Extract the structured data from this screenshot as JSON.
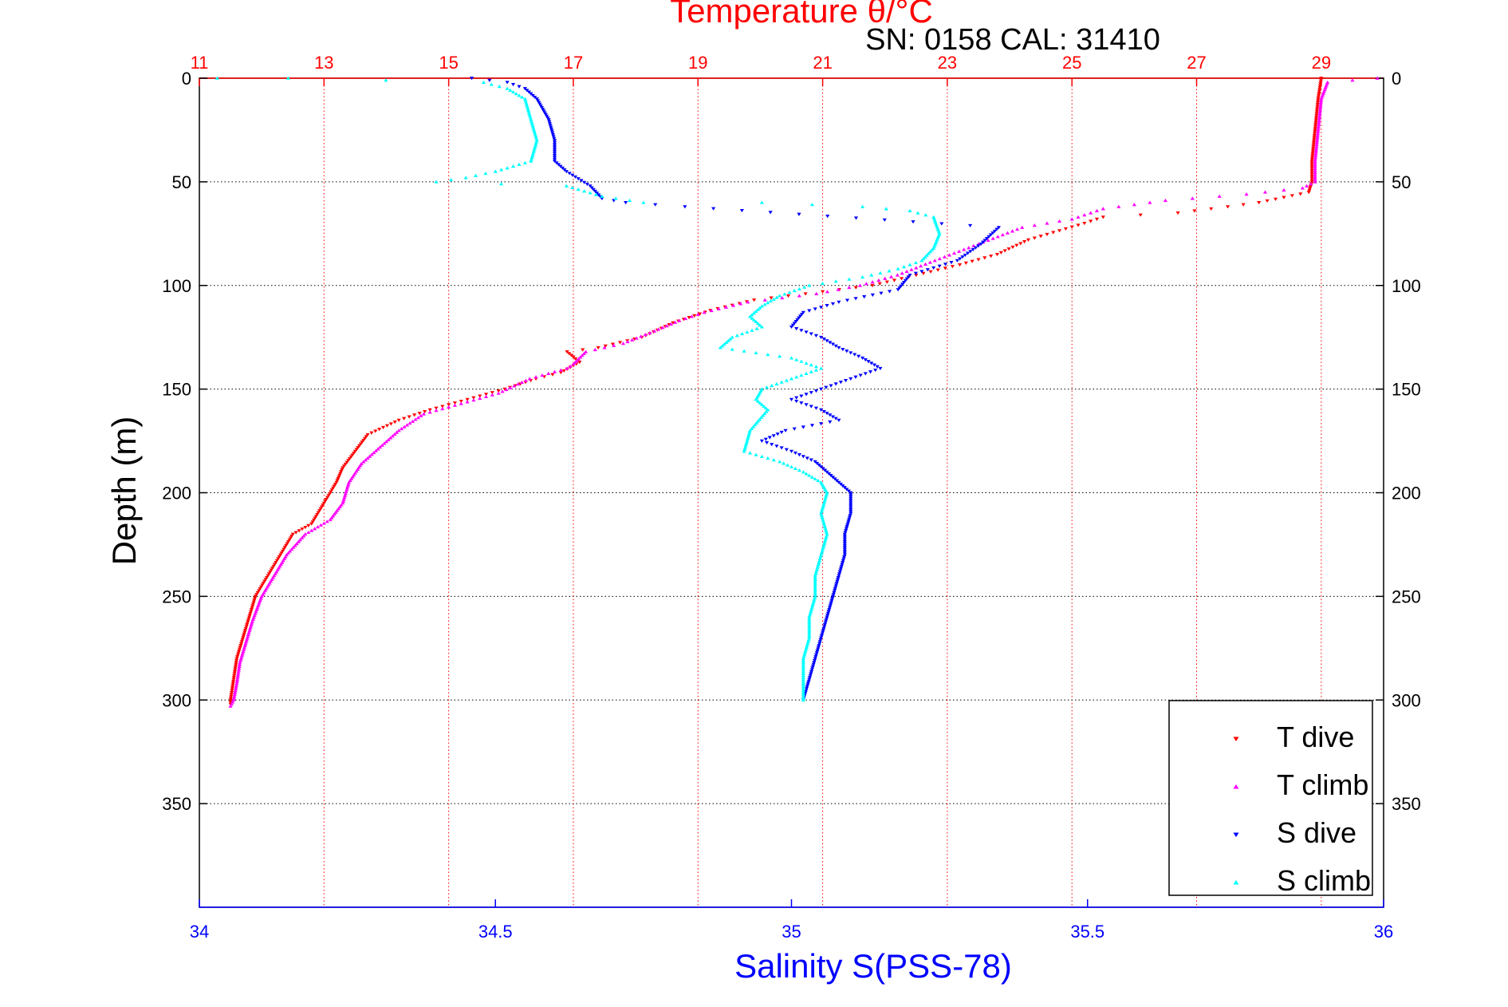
{
  "chart_data": {
    "type": "scatter",
    "title": "Temperature θ/°C",
    "subtitle": "SN: 0158  CAL: 31410",
    "ylabel": "Depth (m)",
    "xlabel": "Salinity S(PSS-78)",
    "depth_axis": {
      "ylim": [
        0,
        400
      ],
      "reversed": true,
      "ticks": [
        0,
        50,
        100,
        150,
        200,
        250,
        300,
        350
      ],
      "tick_labels": [
        "0",
        "50",
        "100",
        "150",
        "200",
        "250",
        "300",
        "350"
      ]
    },
    "temperature_axis": {
      "position": "top",
      "color": "#ff0000",
      "xlim": [
        11,
        30
      ],
      "ticks": [
        11,
        13,
        15,
        17,
        19,
        21,
        23,
        25,
        27,
        29
      ],
      "tick_labels": [
        "11",
        "13",
        "15",
        "17",
        "19",
        "21",
        "23",
        "25",
        "27",
        "29"
      ],
      "grid": true
    },
    "salinity_axis": {
      "position": "bottom",
      "color": "#0000ff",
      "xlim": [
        34,
        36
      ],
      "ticks": [
        34,
        34.5,
        35,
        35.5,
        36
      ],
      "tick_labels": [
        "34",
        "34.5",
        "35",
        "35.5",
        "36"
      ]
    },
    "legend": {
      "placement": "bottom-right",
      "entries": [
        {
          "label": "T dive",
          "color": "#ff0000",
          "marker": "down-triangle"
        },
        {
          "label": "T climb",
          "color": "#ff00ff",
          "marker": "up-triangle"
        },
        {
          "label": "S dive",
          "color": "#0000ff",
          "marker": "down-triangle"
        },
        {
          "label": "S climb",
          "color": "#00ffff",
          "marker": "up-triangle"
        }
      ]
    },
    "series": [
      {
        "name": "T dive",
        "axis": "temperature",
        "color": "#ff0000",
        "marker": "down-triangle",
        "points": [
          [
            29.0,
            0
          ],
          [
            28.95,
            10
          ],
          [
            28.9,
            25
          ],
          [
            28.85,
            40
          ],
          [
            28.85,
            50
          ],
          [
            28.8,
            55
          ],
          [
            28.0,
            60
          ],
          [
            27.5,
            62
          ],
          [
            26.7,
            65
          ],
          [
            25.5,
            67
          ],
          [
            25.2,
            70
          ],
          [
            24.3,
            78
          ],
          [
            23.8,
            85
          ],
          [
            23.2,
            90
          ],
          [
            22.5,
            95
          ],
          [
            21.8,
            100
          ],
          [
            21.0,
            103
          ],
          [
            19.9,
            107
          ],
          [
            19.2,
            112
          ],
          [
            18.6,
            118
          ],
          [
            18.1,
            125
          ],
          [
            17.4,
            130
          ],
          [
            16.9,
            132
          ],
          [
            17.1,
            137
          ],
          [
            16.8,
            142
          ],
          [
            16.4,
            145
          ],
          [
            15.9,
            150
          ],
          [
            15.3,
            155
          ],
          [
            14.7,
            160
          ],
          [
            14.2,
            165
          ],
          [
            13.7,
            172
          ],
          [
            13.5,
            180
          ],
          [
            13.3,
            188
          ],
          [
            13.2,
            195
          ],
          [
            13.0,
            205
          ],
          [
            12.8,
            215
          ],
          [
            12.5,
            220
          ],
          [
            12.3,
            230
          ],
          [
            12.1,
            240
          ],
          [
            11.9,
            250
          ],
          [
            11.8,
            260
          ],
          [
            11.7,
            270
          ],
          [
            11.6,
            280
          ],
          [
            11.55,
            290
          ],
          [
            11.5,
            300
          ],
          [
            11.5,
            302
          ]
        ]
      },
      {
        "name": "T climb",
        "axis": "temperature",
        "color": "#ff00ff",
        "marker": "up-triangle",
        "points": [
          [
            29.9,
            0
          ],
          [
            29.1,
            2
          ],
          [
            29.0,
            10
          ],
          [
            28.95,
            25
          ],
          [
            28.9,
            40
          ],
          [
            28.9,
            50
          ],
          [
            28.7,
            53
          ],
          [
            27.8,
            56
          ],
          [
            26.5,
            59
          ],
          [
            25.5,
            63
          ],
          [
            25.2,
            66
          ],
          [
            25.0,
            68
          ],
          [
            24.2,
            72
          ],
          [
            23.5,
            80
          ],
          [
            22.8,
            88
          ],
          [
            22.2,
            95
          ],
          [
            21.6,
            100
          ],
          [
            20.9,
            104
          ],
          [
            19.8,
            108
          ],
          [
            19.1,
            113
          ],
          [
            18.7,
            117
          ],
          [
            18.3,
            122
          ],
          [
            17.8,
            128
          ],
          [
            17.2,
            132
          ],
          [
            17.0,
            138
          ],
          [
            16.9,
            140
          ],
          [
            16.3,
            145
          ],
          [
            15.8,
            152
          ],
          [
            15.2,
            157
          ],
          [
            14.6,
            162
          ],
          [
            14.2,
            170
          ],
          [
            13.9,
            178
          ],
          [
            13.6,
            186
          ],
          [
            13.4,
            195
          ],
          [
            13.3,
            205
          ],
          [
            13.1,
            213
          ],
          [
            12.7,
            220
          ],
          [
            12.4,
            230
          ],
          [
            12.2,
            240
          ],
          [
            12.0,
            250
          ],
          [
            11.85,
            262
          ],
          [
            11.75,
            272
          ],
          [
            11.65,
            282
          ],
          [
            11.6,
            292
          ],
          [
            11.55,
            300
          ],
          [
            11.5,
            303
          ]
        ]
      },
      {
        "name": "S dive",
        "axis": "salinity",
        "color": "#0000ff",
        "marker": "down-triangle",
        "points": [
          [
            34.46,
            0
          ],
          [
            34.52,
            2
          ],
          [
            34.55,
            5
          ],
          [
            34.57,
            10
          ],
          [
            34.58,
            15
          ],
          [
            34.59,
            20
          ],
          [
            34.6,
            30
          ],
          [
            34.6,
            40
          ],
          [
            34.62,
            45
          ],
          [
            34.66,
            52
          ],
          [
            34.68,
            58
          ],
          [
            34.72,
            60
          ],
          [
            34.82,
            62
          ],
          [
            35.35,
            72
          ],
          [
            35.32,
            80
          ],
          [
            35.28,
            88
          ],
          [
            35.2,
            95
          ],
          [
            35.18,
            102
          ],
          [
            35.08,
            108
          ],
          [
            35.02,
            113
          ],
          [
            35.0,
            120
          ],
          [
            35.05,
            125
          ],
          [
            35.08,
            130
          ],
          [
            35.12,
            135
          ],
          [
            35.15,
            140
          ],
          [
            35.1,
            145
          ],
          [
            35.05,
            150
          ],
          [
            35.0,
            155
          ],
          [
            35.05,
            160
          ],
          [
            35.08,
            165
          ],
          [
            34.99,
            170
          ],
          [
            34.95,
            175
          ],
          [
            35.0,
            180
          ],
          [
            35.04,
            185
          ],
          [
            35.06,
            190
          ],
          [
            35.08,
            195
          ],
          [
            35.1,
            200
          ],
          [
            35.1,
            210
          ],
          [
            35.09,
            220
          ],
          [
            35.09,
            230
          ],
          [
            35.08,
            240
          ],
          [
            35.07,
            250
          ],
          [
            35.06,
            260
          ],
          [
            35.05,
            270
          ],
          [
            35.04,
            280
          ],
          [
            35.03,
            290
          ],
          [
            35.02,
            300
          ]
        ]
      },
      {
        "name": "S climb",
        "axis": "salinity",
        "color": "#00ffff",
        "marker": "up-triangle",
        "points": [
          [
            34.03,
            0
          ],
          [
            34.15,
            0
          ],
          [
            34.48,
            2
          ],
          [
            34.52,
            5
          ],
          [
            34.55,
            10
          ],
          [
            34.56,
            20
          ],
          [
            34.57,
            30
          ],
          [
            34.56,
            40
          ],
          [
            34.5,
            45
          ],
          [
            34.45,
            48
          ],
          [
            34.4,
            50
          ],
          [
            34.62,
            52
          ],
          [
            34.68,
            57
          ],
          [
            34.75,
            60
          ],
          [
            34.95,
            60
          ],
          [
            35.12,
            62
          ],
          [
            35.2,
            64
          ],
          [
            35.24,
            67
          ],
          [
            35.25,
            75
          ],
          [
            35.24,
            82
          ],
          [
            35.22,
            88
          ],
          [
            35.18,
            92
          ],
          [
            35.12,
            96
          ],
          [
            35.03,
            100
          ],
          [
            34.98,
            105
          ],
          [
            34.95,
            110
          ],
          [
            34.93,
            115
          ],
          [
            34.95,
            120
          ],
          [
            34.9,
            125
          ],
          [
            34.88,
            130
          ],
          [
            35.0,
            135
          ],
          [
            35.05,
            140
          ],
          [
            35.0,
            145
          ],
          [
            34.95,
            150
          ],
          [
            34.94,
            155
          ],
          [
            34.96,
            160
          ],
          [
            34.93,
            170
          ],
          [
            34.92,
            180
          ],
          [
            34.98,
            185
          ],
          [
            35.02,
            190
          ],
          [
            35.05,
            195
          ],
          [
            35.06,
            200
          ],
          [
            35.05,
            210
          ],
          [
            35.06,
            220
          ],
          [
            35.05,
            230
          ],
          [
            35.04,
            240
          ],
          [
            35.04,
            250
          ],
          [
            35.03,
            260
          ],
          [
            35.03,
            270
          ],
          [
            35.02,
            280
          ],
          [
            35.02,
            290
          ],
          [
            35.02,
            300
          ]
        ]
      }
    ]
  }
}
